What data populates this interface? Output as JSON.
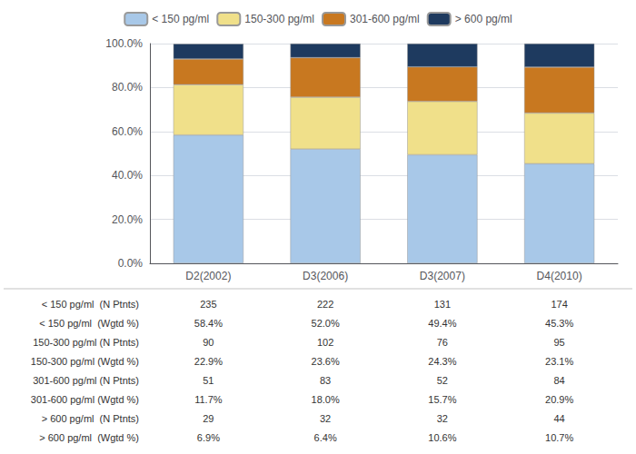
{
  "chart_data": {
    "type": "bar",
    "stacked": true,
    "categories": [
      "D2(2002)",
      "D3(2006)",
      "D3(2007)",
      "D4(2010)"
    ],
    "series": [
      {
        "name": "< 150 pg/ml",
        "color": "#A8C8E8",
        "values": [
          58.4,
          52.0,
          49.4,
          45.3
        ]
      },
      {
        "name": "150-300 pg/ml",
        "color": "#F0E08A",
        "values": [
          22.9,
          23.6,
          24.3,
          23.1
        ]
      },
      {
        "name": "301-600 pg/ml",
        "color": "#C87820",
        "values": [
          11.7,
          18.0,
          15.7,
          20.9
        ]
      },
      {
        "name": "> 600 pg/ml",
        "color": "#1E3A5F",
        "values": [
          6.9,
          6.4,
          10.6,
          10.7
        ]
      }
    ],
    "ylim": [
      0,
      100
    ],
    "yticks": [
      {
        "value": 0,
        "label": "0.0%"
      },
      {
        "value": 20,
        "label": "20.0%"
      },
      {
        "value": 40,
        "label": "40.0%"
      },
      {
        "value": 60,
        "label": "60.0%"
      },
      {
        "value": 80,
        "label": "80.0%"
      },
      {
        "value": 100,
        "label": "100.0%"
      }
    ],
    "grid": true,
    "legend": "top",
    "table_rows": [
      {
        "label": "< 150 pg/ml  (N Ptnts)",
        "values": [
          235,
          222,
          131,
          174
        ]
      },
      {
        "label": "< 150 pg/ml  (Wgtd %)",
        "values": [
          58.4,
          52.0,
          49.4,
          45.3
        ],
        "value_labels": [
          "58.4%",
          "52.0%",
          "49.4%",
          "45.3%"
        ]
      },
      {
        "label": "150-300 pg/ml (N Ptnts)",
        "values": [
          90,
          102,
          76,
          95
        ]
      },
      {
        "label": "150-300 pg/ml (Wgtd %)",
        "values": [
          22.9,
          23.6,
          24.3,
          23.1
        ],
        "value_labels": [
          "22.9%",
          "23.6%",
          "24.3%",
          "23.1%"
        ]
      },
      {
        "label": "301-600 pg/ml (N Ptnts)",
        "values": [
          51,
          83,
          52,
          84
        ]
      },
      {
        "label": "301-600 pg/ml (Wgtd %)",
        "values": [
          11.7,
          18.0,
          15.7,
          20.9
        ],
        "value_labels": [
          "11.7%",
          "18.0%",
          "15.7%",
          "20.9%"
        ]
      },
      {
        "label": "> 600 pg/ml  (N Ptnts)",
        "values": [
          29,
          32,
          32,
          44
        ]
      },
      {
        "label": "> 600 pg/ml  (Wgtd %)",
        "values": [
          6.9,
          6.4,
          10.6,
          10.7
        ],
        "value_labels": [
          "6.9%",
          "6.4%",
          "10.6%",
          "10.7%"
        ]
      }
    ]
  }
}
